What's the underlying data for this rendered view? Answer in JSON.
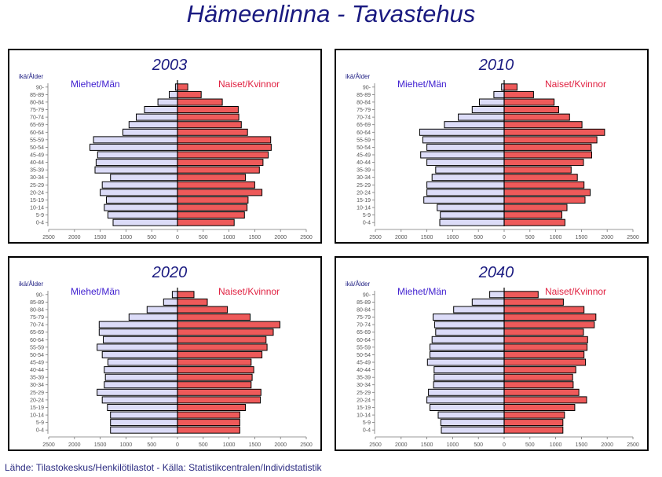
{
  "title": "Hämeenlinna  -  Tavastehus",
  "source": "Lähde: Tilastokeskus/Henkilötilastot  -  Källa: Statistikcentralen/Individstatistik",
  "colors": {
    "men": "#dcdcf8",
    "women": "#ee5a5a",
    "men_label": "#4020d0",
    "women_label": "#e02040",
    "title": "#1a1a80"
  },
  "chart_data": [
    {
      "type": "bar",
      "title": "2003",
      "ylabel": "ikä/Ålder",
      "categories": [
        "0-4",
        "5-9",
        "10-14",
        "15-19",
        "20-24",
        "25-29",
        "30-34",
        "35-39",
        "40-44",
        "45-49",
        "50-54",
        "55-59",
        "60-64",
        "65-69",
        "70-74",
        "75-79",
        "80-84",
        "85-89",
        "90-"
      ],
      "xticks": [
        "2500",
        "2000",
        "1500",
        "1000",
        "500",
        "0",
        "500",
        "1000",
        "1500",
        "2000",
        "2500"
      ],
      "xlim": [
        -2500,
        2500
      ],
      "series": [
        {
          "name": "Miehet/Män",
          "values": [
            1250,
            1350,
            1420,
            1380,
            1500,
            1460,
            1300,
            1600,
            1580,
            1550,
            1700,
            1630,
            1060,
            940,
            800,
            640,
            380,
            160,
            40
          ]
        },
        {
          "name": "Naiset/Kvinnor",
          "values": [
            1100,
            1300,
            1350,
            1370,
            1640,
            1500,
            1320,
            1590,
            1660,
            1760,
            1820,
            1810,
            1360,
            1240,
            1190,
            1180,
            870,
            460,
            200
          ]
        }
      ]
    },
    {
      "type": "bar",
      "title": "2010",
      "ylabel": "ikä/Ålder",
      "categories": [
        "0-4",
        "5-9",
        "10-14",
        "15-19",
        "20-24",
        "25-29",
        "30-34",
        "35-39",
        "40-44",
        "45-49",
        "50-54",
        "55-59",
        "60-64",
        "65-69",
        "70-74",
        "75-79",
        "80-84",
        "85-89",
        "90-"
      ],
      "xticks": [
        "2500",
        "2000",
        "1500",
        "1000",
        "500",
        "0",
        "500",
        "1000",
        "1500",
        "2000",
        "2500"
      ],
      "xlim": [
        -2500,
        2500
      ],
      "series": [
        {
          "name": "Miehet/Män",
          "values": [
            1250,
            1240,
            1300,
            1560,
            1500,
            1500,
            1400,
            1330,
            1500,
            1620,
            1500,
            1580,
            1640,
            1160,
            890,
            620,
            480,
            200,
            50
          ]
        },
        {
          "name": "Naiset/Kvinnor",
          "values": [
            1180,
            1120,
            1220,
            1570,
            1670,
            1550,
            1420,
            1300,
            1540,
            1700,
            1690,
            1800,
            1950,
            1510,
            1270,
            1060,
            970,
            570,
            250
          ]
        }
      ]
    },
    {
      "type": "bar",
      "title": "2020",
      "ylabel": "ikä/Ålder",
      "categories": [
        "0-4",
        "5-9",
        "10-14",
        "15-19",
        "20-24",
        "25-29",
        "30-34",
        "35-39",
        "40-44",
        "45-49",
        "50-54",
        "55-59",
        "60-64",
        "65-69",
        "70-74",
        "75-79",
        "80-84",
        "85-89",
        "90-"
      ],
      "xticks": [
        "2500",
        "2000",
        "1500",
        "1000",
        "500",
        "0",
        "500",
        "1000",
        "1500",
        "2000",
        "2500"
      ],
      "xlim": [
        -2500,
        2500
      ],
      "series": [
        {
          "name": "Miehet/Män",
          "values": [
            1300,
            1300,
            1300,
            1360,
            1460,
            1560,
            1420,
            1400,
            1420,
            1350,
            1460,
            1560,
            1440,
            1520,
            1520,
            940,
            590,
            270,
            100
          ]
        },
        {
          "name": "Naiset/Kvinnor",
          "values": [
            1210,
            1210,
            1210,
            1320,
            1610,
            1620,
            1430,
            1450,
            1480,
            1430,
            1640,
            1740,
            1720,
            1860,
            1990,
            1410,
            970,
            580,
            320
          ]
        }
      ]
    },
    {
      "type": "bar",
      "title": "2040",
      "ylabel": "ikä/Ålder",
      "categories": [
        "0-4",
        "5-9",
        "10-14",
        "15-19",
        "20-24",
        "25-29",
        "30-34",
        "35-39",
        "40-44",
        "45-49",
        "50-54",
        "55-59",
        "60-64",
        "65-69",
        "70-74",
        "75-79",
        "80-84",
        "85-89",
        "90-"
      ],
      "xticks": [
        "2500",
        "2000",
        "1500",
        "1000",
        "500",
        "0",
        "500",
        "1000",
        "1500",
        "2000",
        "2500"
      ],
      "xlim": [
        -2500,
        2500
      ],
      "series": [
        {
          "name": "Miehet/Män",
          "values": [
            1220,
            1230,
            1280,
            1440,
            1500,
            1470,
            1370,
            1360,
            1360,
            1490,
            1440,
            1440,
            1400,
            1330,
            1350,
            1380,
            980,
            620,
            280
          ]
        },
        {
          "name": "Naiset/Kvinnor",
          "values": [
            1140,
            1140,
            1170,
            1370,
            1600,
            1450,
            1340,
            1330,
            1390,
            1580,
            1550,
            1610,
            1620,
            1540,
            1750,
            1780,
            1550,
            1150,
            660
          ]
        }
      ]
    }
  ]
}
